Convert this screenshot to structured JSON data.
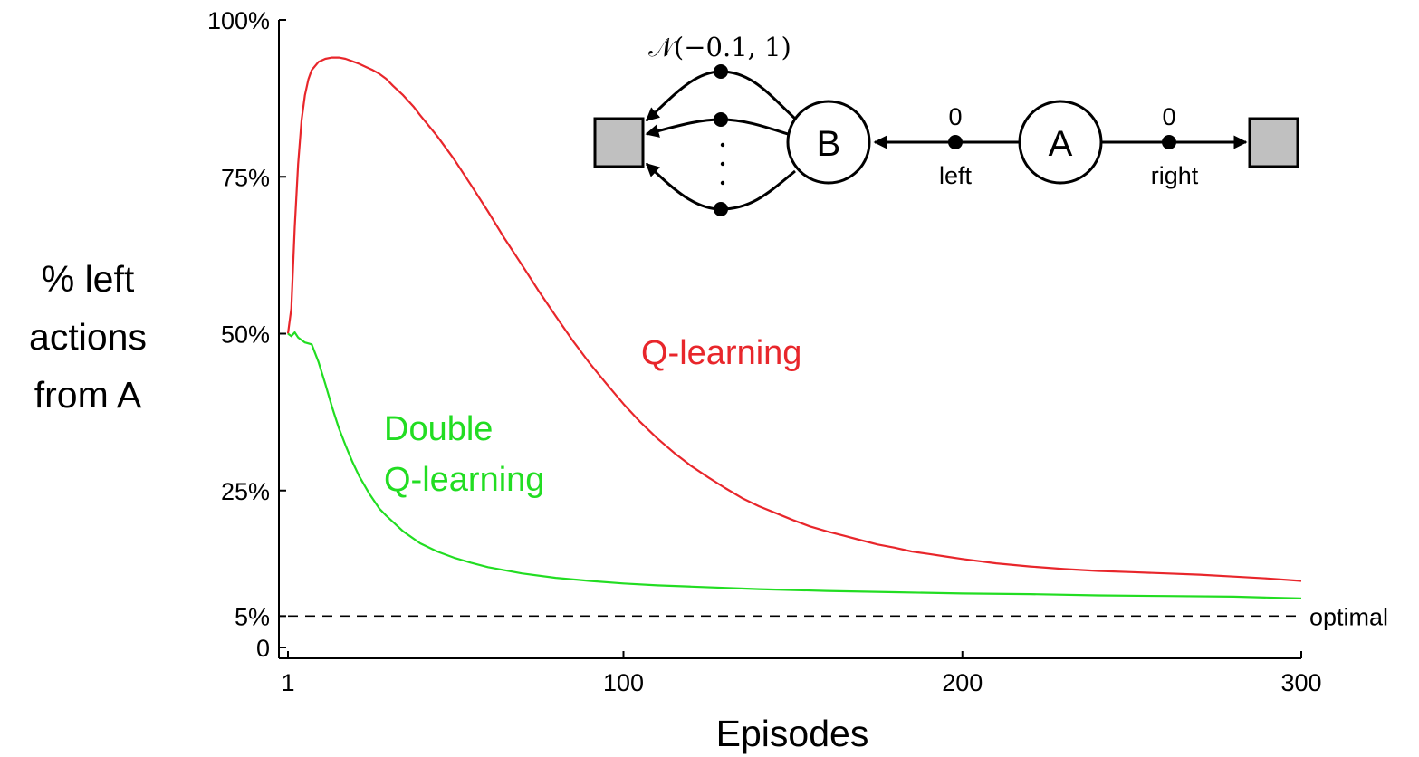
{
  "chart_data": {
    "type": "line",
    "xlabel": "Episodes",
    "ylabel": [
      "% left",
      "actions",
      "from A"
    ],
    "xlim": [
      1,
      300
    ],
    "ylim": [
      0,
      100
    ],
    "x_ticks": [
      1,
      100,
      200,
      300
    ],
    "x_tick_labels": [
      "1",
      "100",
      "200",
      "300"
    ],
    "y_ticks": [
      0,
      5,
      25,
      50,
      75,
      100
    ],
    "y_tick_labels": [
      "0",
      "5%",
      "25%",
      "50%",
      "75%",
      "100%"
    ],
    "reference_line": {
      "y": 5,
      "style": "dashed",
      "label": "optimal"
    },
    "series": [
      {
        "name": "Q-learning",
        "color": "#e8262b",
        "x": [
          1,
          2,
          3,
          4,
          5,
          6,
          7,
          8,
          10,
          12,
          14,
          16,
          18,
          20,
          22,
          24,
          26,
          28,
          30,
          32,
          35,
          38,
          40,
          45,
          50,
          55,
          60,
          65,
          70,
          75,
          80,
          85,
          90,
          95,
          100,
          105,
          110,
          115,
          120,
          125,
          130,
          135,
          140,
          145,
          150,
          155,
          160,
          165,
          170,
          175,
          180,
          185,
          190,
          195,
          200,
          210,
          220,
          230,
          240,
          250,
          260,
          270,
          280,
          290,
          300
        ],
        "y": [
          50,
          54,
          67,
          77,
          84,
          88,
          90.5,
          92,
          93.3,
          93.8,
          94,
          94,
          93.8,
          93.4,
          93,
          92.5,
          92,
          91.4,
          90.6,
          89.5,
          88,
          86.2,
          84.8,
          81.5,
          77.8,
          73.7,
          69.5,
          65.1,
          61,
          56.8,
          52.8,
          48.9,
          45.3,
          42,
          38.8,
          35.9,
          33.3,
          31,
          28.9,
          27.1,
          25.4,
          23.8,
          22.5,
          21.4,
          20.3,
          19.3,
          18.5,
          17.8,
          17.1,
          16.4,
          15.9,
          15.3,
          14.9,
          14.5,
          14.1,
          13.4,
          12.9,
          12.5,
          12.2,
          12,
          11.8,
          11.6,
          11.3,
          11,
          10.6
        ]
      },
      {
        "name": "Double\nQ-learning",
        "color": "#22dd22",
        "x": [
          1,
          2,
          3,
          4,
          6,
          8,
          10,
          12,
          14,
          16,
          18,
          20,
          22,
          25,
          28,
          30,
          35,
          40,
          45,
          50,
          55,
          60,
          70,
          80,
          90,
          100,
          110,
          120,
          140,
          160,
          180,
          200,
          220,
          240,
          260,
          280,
          300
        ],
        "y": [
          50,
          49.6,
          50.2,
          49.4,
          48.6,
          48.3,
          45.5,
          42,
          38.3,
          35,
          32.2,
          29.6,
          27.3,
          24.5,
          22.1,
          21,
          18.5,
          16.6,
          15.3,
          14.3,
          13.5,
          12.8,
          11.8,
          11.1,
          10.6,
          10.2,
          9.9,
          9.7,
          9.3,
          9,
          8.8,
          8.6,
          8.5,
          8.3,
          8.2,
          8.1,
          7.8
        ]
      }
    ]
  },
  "diagram": {
    "distribution": "𝒩(−0.1, 1)",
    "node_b": "B",
    "node_a": "A",
    "left_reward": "0",
    "right_reward": "0",
    "left_action": "left",
    "right_action": "right"
  }
}
